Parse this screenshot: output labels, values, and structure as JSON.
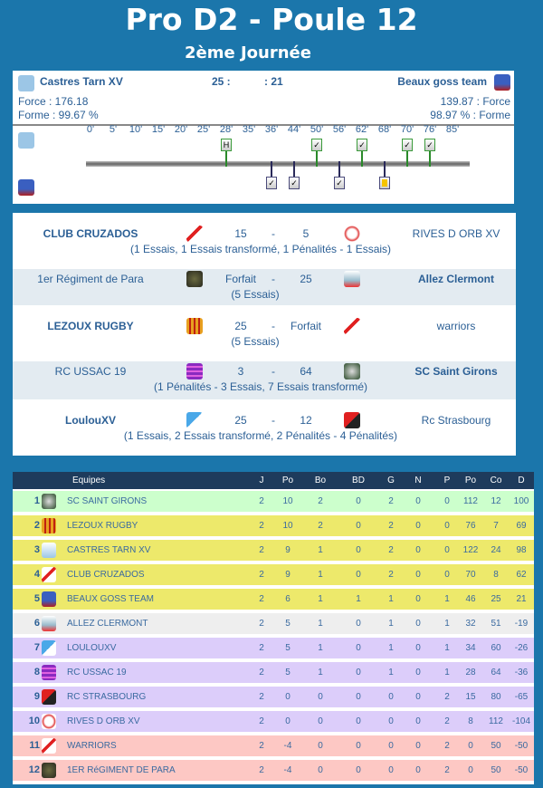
{
  "title": "Pro D2 - Poule 12",
  "subtitle": "2ème Journée",
  "featured": {
    "home": {
      "name": "Castres Tarn XV",
      "force": "Force : 176.18",
      "forme": "Forme : 99.67 %",
      "score": "25 :"
    },
    "away": {
      "name": "Beaux goss team",
      "force": "139.87 : Force",
      "forme": "98.97 % : Forme",
      "score": ": 21"
    },
    "ticks": [
      "0'",
      "5'",
      "10'",
      "15'",
      "20'",
      "25'",
      "28'",
      "35'",
      "36'",
      "44'",
      "50'",
      "56'",
      "62'",
      "68'",
      "70'",
      "76'",
      "85'"
    ],
    "home_events": [
      {
        "minute": "28'",
        "type": "H"
      },
      {
        "minute": "50'",
        "type": "try"
      },
      {
        "minute": "62'",
        "type": "try"
      },
      {
        "minute": "70'",
        "type": "try"
      },
      {
        "minute": "76'",
        "type": "try"
      }
    ],
    "away_events": [
      {
        "minute": "36'",
        "type": "try"
      },
      {
        "minute": "44'",
        "type": "try"
      },
      {
        "minute": "56'",
        "type": "try"
      },
      {
        "minute": "68'",
        "type": "yellow-card"
      }
    ]
  },
  "matches": [
    {
      "home": "CLUB CRUZADOS",
      "hs": "15",
      "sep": "-",
      "as": "5",
      "away": "RIVES D ORB XV",
      "detail": "(1 Essais, 1 Essais transformé, 1 Pénalités - 1 Essais)",
      "winner": "home"
    },
    {
      "home": "1er Régiment de Para",
      "hs": "Forfait",
      "sep": "-",
      "as": "25",
      "away": "Allez Clermont",
      "detail": "(5 Essais)",
      "winner": "away"
    },
    {
      "home": "LEZOUX RUGBY",
      "hs": "25",
      "sep": "-",
      "as": "Forfait",
      "away": "warriors",
      "detail": "(5 Essais)",
      "winner": "home"
    },
    {
      "home": "RC USSAC 19",
      "hs": "3",
      "sep": "-",
      "as": "64",
      "away": "SC Saint Girons",
      "detail": "(1 Pénalités - 3 Essais, 7 Essais transformé)",
      "winner": "away"
    },
    {
      "home": "LoulouXV",
      "hs": "25",
      "sep": "-",
      "as": "12",
      "away": "Rc Strasbourg",
      "detail": "(1 Essais, 2 Essais transformé, 2 Pénalités - 4 Pénalités)",
      "winner": "home"
    }
  ],
  "standings": {
    "headers": [
      "Equipes",
      "J",
      "Po",
      "Bo",
      "BD",
      "G",
      "N",
      "P",
      "Po",
      "Co",
      "D"
    ],
    "rows": [
      {
        "rank": "1",
        "team": "SC SAINT GIRONS",
        "v": [
          "2",
          "10",
          "2",
          "0",
          "2",
          "0",
          "0",
          "112",
          "12",
          "100"
        ],
        "color": "#ccffcc"
      },
      {
        "rank": "2",
        "team": "LEZOUX RUGBY",
        "v": [
          "2",
          "10",
          "2",
          "0",
          "2",
          "0",
          "0",
          "76",
          "7",
          "69"
        ],
        "color": "#ede96b"
      },
      {
        "rank": "3",
        "team": "CASTRES TARN XV",
        "v": [
          "2",
          "9",
          "1",
          "0",
          "2",
          "0",
          "0",
          "122",
          "24",
          "98"
        ],
        "color": "#ede96b"
      },
      {
        "rank": "4",
        "team": "CLUB CRUZADOS",
        "v": [
          "2",
          "9",
          "1",
          "0",
          "2",
          "0",
          "0",
          "70",
          "8",
          "62"
        ],
        "color": "#ede96b"
      },
      {
        "rank": "5",
        "team": "BEAUX GOSS TEAM",
        "v": [
          "2",
          "6",
          "1",
          "1",
          "1",
          "0",
          "1",
          "46",
          "25",
          "21"
        ],
        "color": "#ede96b"
      },
      {
        "rank": "6",
        "team": "ALLEZ CLERMONT",
        "v": [
          "2",
          "5",
          "1",
          "0",
          "1",
          "0",
          "1",
          "32",
          "51",
          "-19"
        ],
        "color": "#eeeeee"
      },
      {
        "rank": "7",
        "team": "LOULOUXV",
        "v": [
          "2",
          "5",
          "1",
          "0",
          "1",
          "0",
          "1",
          "34",
          "60",
          "-26"
        ],
        "color": "#dccdfa"
      },
      {
        "rank": "8",
        "team": "RC USSAC 19",
        "v": [
          "2",
          "5",
          "1",
          "0",
          "1",
          "0",
          "1",
          "28",
          "64",
          "-36"
        ],
        "color": "#dccdfa"
      },
      {
        "rank": "9",
        "team": "RC STRASBOURG",
        "v": [
          "2",
          "0",
          "0",
          "0",
          "0",
          "0",
          "2",
          "15",
          "80",
          "-65"
        ],
        "color": "#dccdfa"
      },
      {
        "rank": "10",
        "team": "RIVES D ORB XV",
        "v": [
          "2",
          "0",
          "0",
          "0",
          "0",
          "0",
          "2",
          "8",
          "112",
          "-104"
        ],
        "color": "#dccdfa"
      },
      {
        "rank": "11",
        "team": "WARRIORS",
        "v": [
          "2",
          "-4",
          "0",
          "0",
          "0",
          "0",
          "2",
          "0",
          "50",
          "-50"
        ],
        "color": "#fdc8c4"
      },
      {
        "rank": "12",
        "team": "1ER RéGIMENT DE PARA",
        "v": [
          "2",
          "-4",
          "0",
          "0",
          "0",
          "0",
          "2",
          "0",
          "50",
          "-50"
        ],
        "color": "#fdc8c4"
      }
    ]
  }
}
